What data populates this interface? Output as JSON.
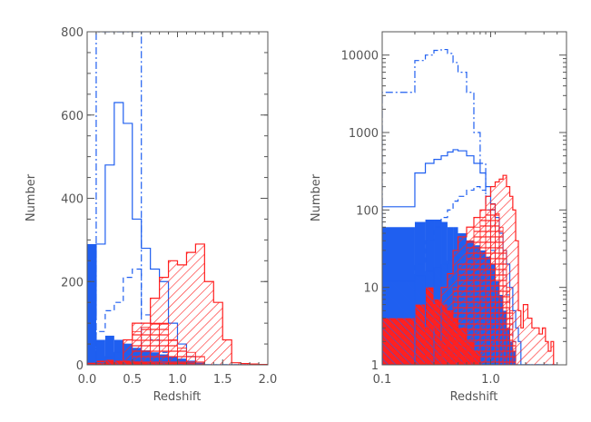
{
  "colors": {
    "blue": "#1f5ff0",
    "red": "#ff2020",
    "axis": "#555555"
  },
  "chart_data": [
    {
      "type": "bar",
      "xlabel": "Redshift",
      "ylabel": "Number",
      "xscale": "linear",
      "yscale": "linear",
      "xlim": [
        0,
        2.0
      ],
      "ylim": [
        0,
        800
      ],
      "xticks": [
        0,
        0.5,
        1,
        1.5,
        2
      ],
      "xtick_labels": [
        "0.0",
        "0.5",
        "1.0",
        "1.5",
        "2.0"
      ],
      "yticks": [
        0,
        200,
        400,
        600,
        800
      ],
      "ytick_labels": [
        "0",
        "200",
        "400",
        "600",
        "800"
      ],
      "grid": false,
      "edges": [
        0,
        0.1,
        0.2,
        0.3,
        0.4,
        0.5,
        0.6,
        0.7,
        0.8,
        0.9,
        1.0,
        1.1,
        1.2,
        1.3,
        1.4,
        1.5,
        1.6,
        1.7,
        1.8,
        1.9,
        2.0
      ],
      "series": [
        {
          "style": "filled",
          "color": "blue",
          "values": [
            290,
            60,
            70,
            60,
            50,
            40,
            35,
            30,
            25,
            20,
            15,
            10,
            5,
            0,
            0,
            0,
            0,
            0,
            0,
            0
          ]
        },
        {
          "style": "filled",
          "color": "red",
          "values": [
            5,
            10,
            12,
            10,
            10,
            8,
            6,
            5,
            5,
            5,
            5,
            4,
            3,
            0,
            0,
            0,
            0,
            0,
            0,
            0
          ]
        },
        {
          "style": "hatched",
          "color": "blue",
          "values": [
            0,
            5,
            20,
            30,
            50,
            40,
            20,
            10,
            5,
            0,
            0,
            0,
            0,
            0,
            0,
            0,
            0,
            0,
            0,
            0
          ]
        },
        {
          "style": "solid-step",
          "color": "blue",
          "values": [
            110,
            290,
            480,
            630,
            580,
            350,
            280,
            230,
            200,
            100,
            50,
            20,
            0,
            0,
            0,
            0,
            0,
            0,
            0,
            0
          ]
        },
        {
          "style": "dashed-step",
          "color": "blue",
          "values": [
            0,
            80,
            130,
            150,
            210,
            230,
            120,
            60,
            30,
            10,
            0,
            0,
            0,
            0,
            0,
            0,
            0,
            0,
            0,
            0
          ]
        },
        {
          "style": "dashdot-step",
          "color": "blue",
          "values": [
            0,
            800,
            800,
            800,
            800,
            800,
            0,
            0,
            0,
            0,
            0,
            0,
            0,
            0,
            0,
            0,
            0,
            0,
            0,
            0
          ]
        },
        {
          "style": "hatched-outline",
          "color": "red",
          "values": [
            0,
            0,
            0,
            0,
            60,
            100,
            100,
            160,
            210,
            250,
            240,
            270,
            290,
            200,
            150,
            60,
            5,
            3,
            2,
            1
          ]
        },
        {
          "style": "crosshatched",
          "color": "red",
          "values": [
            0,
            0,
            0,
            0,
            0,
            80,
            90,
            100,
            100,
            60,
            40,
            30,
            20,
            0,
            0,
            0,
            0,
            0,
            0,
            0
          ]
        }
      ]
    },
    {
      "type": "bar",
      "xlabel": "Redshift",
      "ylabel": "Number",
      "xscale": "log",
      "yscale": "log",
      "xlim": [
        0.1,
        5
      ],
      "ylim": [
        1,
        20000
      ],
      "xticks": [
        0.1,
        1.0
      ],
      "xtick_labels": [
        "0.1",
        "1.0"
      ],
      "yticks": [
        1,
        10,
        100,
        1000,
        10000
      ],
      "ytick_labels": [
        "1",
        "10",
        "100",
        "1000",
        "10000"
      ],
      "grid": false,
      "edges": [
        0.1,
        0.2,
        0.25,
        0.3,
        0.35,
        0.4,
        0.45,
        0.5,
        0.6,
        0.7,
        0.8,
        0.9,
        1.0,
        1.1,
        1.2,
        1.3,
        1.4,
        1.5,
        1.6,
        1.7,
        1.8,
        1.9,
        2.0,
        2.2,
        2.4,
        2.6,
        2.8,
        3.0,
        3.2,
        3.4,
        3.6,
        3.8,
        4.0
      ],
      "series": [
        {
          "style": "filled",
          "color": "blue",
          "values": [
            60,
            70,
            75,
            75,
            70,
            60,
            60,
            50,
            40,
            35,
            30,
            25,
            20,
            12,
            8,
            5,
            3,
            2,
            1.5,
            1,
            1,
            1,
            1,
            1,
            1,
            1,
            1,
            1,
            1,
            1,
            1,
            1
          ]
        },
        {
          "style": "filled",
          "color": "red",
          "values": [
            4,
            6,
            10,
            7,
            6,
            5,
            4,
            3,
            2,
            1.5,
            1,
            1,
            1,
            1,
            1,
            1,
            1,
            1,
            1,
            1,
            1,
            1,
            1,
            1,
            1,
            1,
            1,
            1,
            1,
            1,
            1,
            1
          ]
        },
        {
          "style": "hatched",
          "color": "blue",
          "values": [
            12,
            14,
            16,
            18,
            20,
            22,
            25,
            30,
            35,
            30,
            25,
            20,
            15,
            10,
            6,
            4,
            2,
            1,
            1,
            1,
            1,
            1,
            1,
            1,
            1,
            1,
            1,
            1,
            1,
            1,
            1,
            1
          ]
        },
        {
          "style": "solid-step",
          "color": "blue",
          "values": [
            110,
            300,
            400,
            450,
            500,
            560,
            600,
            580,
            500,
            400,
            300,
            200,
            120,
            80,
            50,
            30,
            20,
            10,
            5,
            3,
            2,
            1,
            1,
            1,
            1,
            1,
            1,
            1,
            1,
            1,
            1,
            1
          ]
        },
        {
          "style": "dashed-step",
          "color": "blue",
          "values": [
            1,
            20,
            40,
            60,
            80,
            100,
            130,
            150,
            180,
            200,
            180,
            150,
            100,
            60,
            30,
            15,
            8,
            4,
            2,
            1,
            1,
            1,
            1,
            1,
            1,
            1,
            1,
            1,
            1,
            1,
            1,
            1
          ]
        },
        {
          "style": "dashdot-step",
          "color": "blue",
          "values": [
            3300,
            8500,
            10000,
            11500,
            11800,
            10500,
            8000,
            6000,
            3300,
            1000,
            400,
            100,
            30,
            10,
            1,
            1,
            1,
            1,
            1,
            1,
            1,
            1,
            1,
            1,
            1,
            1,
            1,
            1,
            1,
            1,
            1,
            1
          ]
        },
        {
          "style": "hatched-outline",
          "color": "red",
          "values": [
            1,
            1,
            3,
            6,
            10,
            15,
            30,
            45,
            60,
            80,
            100,
            150,
            200,
            230,
            250,
            280,
            200,
            150,
            100,
            40,
            5,
            3,
            6,
            4,
            3,
            3,
            2.5,
            3,
            2,
            1.5,
            2,
            1
          ]
        },
        {
          "style": "crosshatched",
          "color": "red",
          "values": [
            1,
            1,
            1,
            1,
            2,
            5,
            10,
            20,
            40,
            60,
            80,
            100,
            120,
            90,
            60,
            30,
            10,
            5,
            2,
            1,
            1,
            1,
            1,
            1,
            1,
            1,
            1,
            1,
            1,
            1,
            1,
            1
          ]
        }
      ]
    }
  ]
}
